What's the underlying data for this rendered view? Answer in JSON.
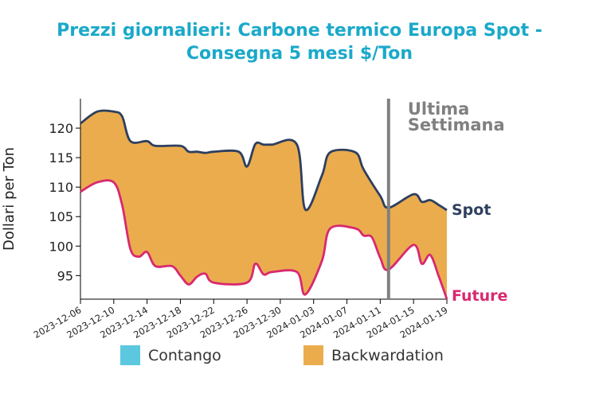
{
  "title_line1": "Prezzi giornalieri: Carbone termico Europa Spot -",
  "title_line2": "Consegna 5 mesi $/Ton",
  "chart_data": {
    "type": "area",
    "ylabel": "Dollari per Ton",
    "xlabel": "",
    "ylim": [
      91,
      125
    ],
    "yticks": [
      95,
      100,
      105,
      110,
      115,
      120
    ],
    "xticks": [
      "2023-12-06",
      "2023-12-10",
      "2023-12-14",
      "2023-12-18",
      "2023-12-22",
      "2023-12-26",
      "2023-12-30",
      "2024-01-03",
      "2024-01-07",
      "2024-01-11",
      "2024-01-15",
      "2024-01-19"
    ],
    "xlim": [
      "2023-12-06",
      "2024-01-19"
    ],
    "series": [
      {
        "name": "Spot",
        "color": "#2e3f5e",
        "x": [
          "2023-12-06",
          "2023-12-08",
          "2023-12-10",
          "2023-12-11",
          "2023-12-12",
          "2023-12-14",
          "2023-12-15",
          "2023-12-18",
          "2023-12-19",
          "2023-12-20",
          "2023-12-21",
          "2023-12-22",
          "2023-12-25",
          "2023-12-26",
          "2023-12-27",
          "2023-12-28",
          "2023-12-29",
          "2024-01-01",
          "2024-01-02",
          "2024-01-04",
          "2024-01-05",
          "2024-01-08",
          "2024-01-09",
          "2024-01-11",
          "2024-01-12",
          "2024-01-15",
          "2024-01-16",
          "2024-01-17",
          "2024-01-18",
          "2024-01-19"
        ],
        "values": [
          120.8,
          122.8,
          122.8,
          122.0,
          117.8,
          117.8,
          117.0,
          117.0,
          116.0,
          116.0,
          115.8,
          116.0,
          116.0,
          113.5,
          117.3,
          117.2,
          117.2,
          117.2,
          106.2,
          112.0,
          115.9,
          115.9,
          113.0,
          108.5,
          106.5,
          108.8,
          107.5,
          107.8,
          107.0,
          106.1
        ]
      },
      {
        "name": "Future",
        "color": "#d8296f",
        "x": [
          "2023-12-06",
          "2023-12-08",
          "2023-12-10",
          "2023-12-11",
          "2023-12-12",
          "2023-12-13",
          "2023-12-14",
          "2023-12-15",
          "2023-12-17",
          "2023-12-18",
          "2023-12-19",
          "2023-12-20",
          "2023-12-21",
          "2023-12-22",
          "2023-12-26",
          "2023-12-27",
          "2023-12-28",
          "2023-12-29",
          "2024-01-01",
          "2024-01-02",
          "2024-01-04",
          "2024-01-05",
          "2024-01-08",
          "2024-01-09",
          "2024-01-10",
          "2024-01-11",
          "2024-01-12",
          "2024-01-15",
          "2024-01-16",
          "2024-01-17",
          "2024-01-18",
          "2024-01-19"
        ],
        "values": [
          109.2,
          110.8,
          110.8,
          107.0,
          99.5,
          98.2,
          99.0,
          96.6,
          96.6,
          95.0,
          93.5,
          94.8,
          95.3,
          93.8,
          93.8,
          97.0,
          95.2,
          95.6,
          95.6,
          91.8,
          97.5,
          103.0,
          103.0,
          101.8,
          101.5,
          98.0,
          96.0,
          100.2,
          97.0,
          98.5,
          95.0,
          91.0
        ]
      }
    ],
    "fill": "Backwardation",
    "annotation": {
      "label_line1": "Ultima",
      "label_line2": "Settimana",
      "x": "2024-01-12"
    },
    "legend": {
      "position": "bottom",
      "items": [
        {
          "label": "Contango",
          "color": "#5bc8e0"
        },
        {
          "label": "Backwardation",
          "color": "#ebac4e"
        }
      ]
    }
  }
}
